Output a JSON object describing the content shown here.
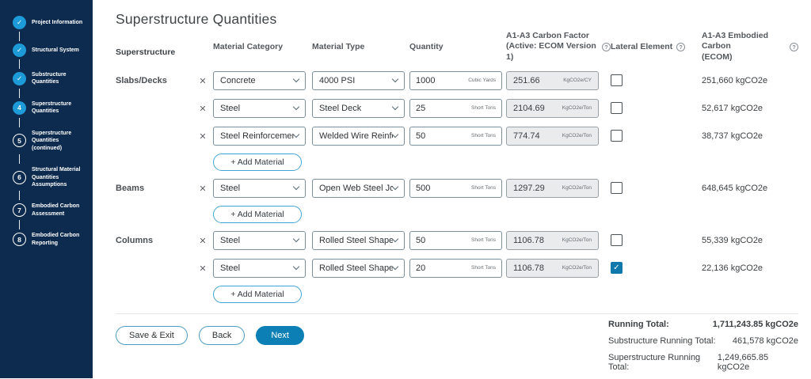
{
  "colors": {
    "sidebar_navy": "#0d2b4e",
    "step_blue": "#1d9bd8",
    "primary_blue": "#0c80b4",
    "checkbox_blue": "#0f79ab"
  },
  "sidebar": {
    "steps": [
      {
        "number": "1",
        "label": "Project Information",
        "state": "complete"
      },
      {
        "number": "2",
        "label": "Structural System",
        "state": "complete"
      },
      {
        "number": "3",
        "label": "Substructure Quantities",
        "state": "complete"
      },
      {
        "number": "4",
        "label": "Superstructure Quantities",
        "state": "active"
      },
      {
        "number": "5",
        "label": "Superstructure Quantities (continued)",
        "state": "upcoming"
      },
      {
        "number": "6",
        "label": "Structural Material Quantities Assumptions",
        "state": "upcoming"
      },
      {
        "number": "7",
        "label": "Embodied Carbon Assessment",
        "state": "upcoming"
      },
      {
        "number": "8",
        "label": "Embodied Carbon Reporting",
        "state": "upcoming"
      }
    ],
    "check_glyph": "✓"
  },
  "page": {
    "title": "Superstructure Quantities"
  },
  "table": {
    "headers": {
      "section": "Superstructure",
      "category": "Material Category",
      "type": "Material Type",
      "quantity": "Quantity",
      "factor_line1": "A1-A3 Carbon Factor",
      "factor_line2": "(Active: ECOM Version 1)",
      "lateral": "Lateral Element",
      "embodied_line1": "A1-A3 Embodied Carbon",
      "embodied_line2": "(ECOM)",
      "help_glyph": "?"
    },
    "add_material_label": "+ Add Material",
    "remove_glyph": "✕",
    "sections": [
      {
        "name": "Slabs/Decks",
        "rows": [
          {
            "category": "Concrete",
            "type": "4000 PSI",
            "quantity": "1000",
            "unit": "Cubic Yards",
            "factor": "251.66",
            "factor_unit": "KgCO2e/CY",
            "lateral": false,
            "embodied": "251,660 kgCO2e"
          },
          {
            "category": "Steel",
            "type": "Steel Deck",
            "quantity": "25",
            "unit": "Short Tons",
            "factor": "2104.69",
            "factor_unit": "KgCO2e/Ton",
            "lateral": false,
            "embodied": "52,617 kgCO2e"
          },
          {
            "category": "Steel Reinforcement",
            "type": "Welded Wire Reinfor...",
            "quantity": "50",
            "unit": "Short Tons",
            "factor": "774.74",
            "factor_unit": "KgCO2e/Ton",
            "lateral": false,
            "embodied": "38,737 kgCO2e"
          }
        ]
      },
      {
        "name": "Beams",
        "rows": [
          {
            "category": "Steel",
            "type": "Open Web Steel Jois...",
            "quantity": "500",
            "unit": "Short Tons",
            "factor": "1297.29",
            "factor_unit": "KgCO2e/Ton",
            "lateral": false,
            "embodied": "648,645 kgCO2e"
          }
        ]
      },
      {
        "name": "Columns",
        "rows": [
          {
            "category": "Steel",
            "type": "Rolled Steel Shapes",
            "quantity": "50",
            "unit": "Short Tons",
            "factor": "1106.78",
            "factor_unit": "KgCO2e/Ton",
            "lateral": false,
            "embodied": "55,339 kgCO2e"
          },
          {
            "category": "Steel",
            "type": "Rolled Steel Shapes",
            "quantity": "20",
            "unit": "Short Tons",
            "factor": "1106.78",
            "factor_unit": "KgCO2e/Ton",
            "lateral": true,
            "embodied": "22,136 kgCO2e"
          }
        ]
      }
    ]
  },
  "footer": {
    "buttons": {
      "save_exit": "Save & Exit",
      "back": "Back",
      "next": "Next"
    },
    "totals": [
      {
        "label": "Running Total:",
        "value": "1,711,243.85 kgCO2e"
      },
      {
        "label": "Substructure Running Total:",
        "value": "461,578 kgCO2e"
      },
      {
        "label": "Superstructure Running Total:",
        "value": "1,249,665.85 kgCO2e"
      }
    ]
  }
}
